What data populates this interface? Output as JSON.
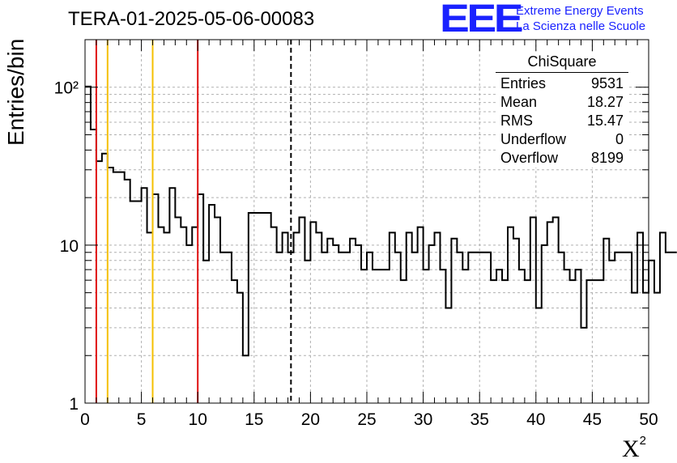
{
  "header": {
    "title": "TERA-01-2025-05-06-00083"
  },
  "logo": {
    "mark": "EEE",
    "line1": "Extreme Energy Events",
    "line2": "La Scienza nelle Scuole",
    "color": "#1a22ff"
  },
  "stats": {
    "title": "ChiSquare",
    "rows": [
      {
        "label": "Entries",
        "value": "9531"
      },
      {
        "label": "Mean",
        "value": "18.27"
      },
      {
        "label": "RMS",
        "value": "15.47"
      },
      {
        "label": "Underflow",
        "value": "0"
      },
      {
        "label": "Overflow",
        "value": "8199"
      }
    ]
  },
  "chart_data": {
    "type": "histogram",
    "title": "TERA-01-2025-05-06-00083",
    "xlabel": "X",
    "xlabel_superscript": "2",
    "ylabel": "Entries/bin",
    "xlim": [
      0,
      50
    ],
    "ylim": [
      1,
      200
    ],
    "yscale": "log",
    "grid": true,
    "bin_width": 0.5,
    "x_ticks": [
      0,
      5,
      10,
      15,
      20,
      25,
      30,
      35,
      40,
      45,
      50
    ],
    "x_tick_labels": [
      "0",
      "5",
      "10",
      "15",
      "20",
      "25",
      "30",
      "35",
      "40",
      "45",
      "50"
    ],
    "y_ticks": [
      1,
      10,
      100
    ],
    "y_tick_labels": [
      "1",
      "10",
      "10²"
    ],
    "values": [
      101,
      54,
      34,
      38,
      31,
      29,
      29,
      26,
      19,
      19,
      23,
      12,
      21,
      13,
      12,
      23,
      15,
      13,
      10,
      13,
      21,
      8,
      18,
      15,
      9,
      9,
      6,
      5,
      2,
      16,
      16,
      16,
      16,
      13,
      9,
      12,
      9,
      12,
      15,
      8,
      14,
      12,
      9,
      11,
      10,
      9,
      9,
      11,
      10,
      7,
      9,
      7,
      7,
      7,
      12,
      9,
      6,
      12,
      9,
      13,
      7,
      10,
      12,
      7,
      4,
      11,
      9,
      7,
      9,
      9,
      9,
      9,
      6,
      7,
      6,
      13,
      11,
      7,
      6,
      15,
      4,
      10,
      14,
      15,
      9,
      7,
      6,
      7,
      3,
      6,
      6,
      6,
      11,
      8,
      9,
      9,
      9,
      5,
      12,
      5,
      8,
      5,
      12,
      9,
      9
    ],
    "vlines": [
      {
        "x": 1,
        "color": "#e01010",
        "style": "solid"
      },
      {
        "x": 2,
        "color": "#f5c000",
        "style": "solid"
      },
      {
        "x": 6,
        "color": "#f5c000",
        "style": "solid"
      },
      {
        "x": 10,
        "color": "#e01010",
        "style": "solid"
      },
      {
        "x": 18.27,
        "color": "#000000",
        "style": "dashed"
      }
    ],
    "line_color": "#000000",
    "grid_color": "#b0b0b0"
  }
}
